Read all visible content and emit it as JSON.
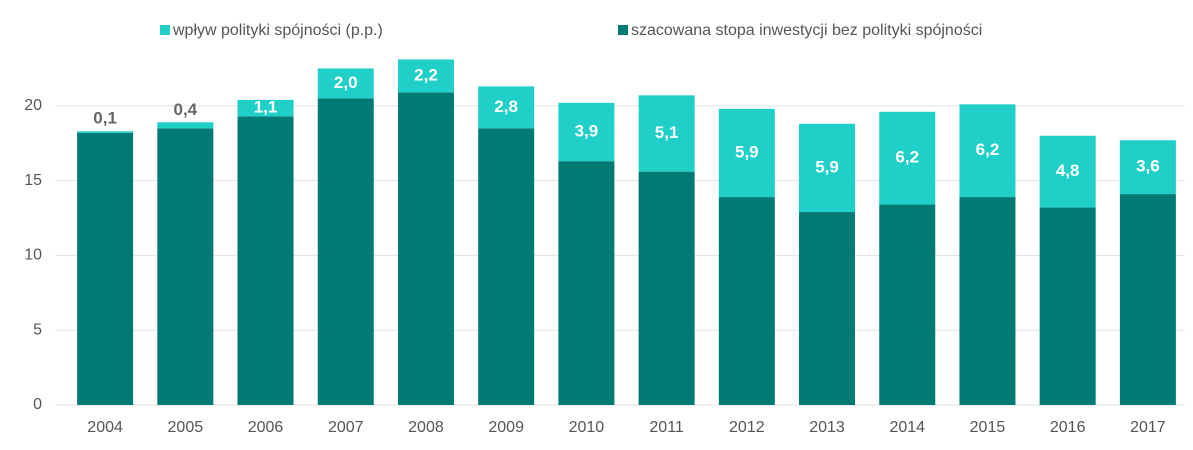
{
  "chart_data": {
    "type": "stacked_bar",
    "categories": [
      "2004",
      "2005",
      "2006",
      "2007",
      "2008",
      "2009",
      "2010",
      "2011",
      "2012",
      "2013",
      "2014",
      "2015",
      "2016",
      "2017"
    ],
    "series": [
      {
        "name": "szacowana stopa inwestycji bez polityki spójności",
        "color": "#007a73",
        "values": [
          18.2,
          18.5,
          19.3,
          20.5,
          20.9,
          18.5,
          16.3,
          15.6,
          13.9,
          12.9,
          13.4,
          13.9,
          13.2,
          14.1
        ]
      },
      {
        "name": "wpływ polityki spójności (p.p.)",
        "color": "#1fcfc8",
        "values": [
          0.1,
          0.4,
          1.1,
          2.0,
          2.2,
          2.8,
          3.9,
          5.1,
          5.9,
          5.9,
          6.2,
          6.2,
          4.8,
          3.6
        ],
        "value_labels": [
          "0,1",
          "0,4",
          "1,1",
          "2,0",
          "2,2",
          "2,8",
          "3,9",
          "5,1",
          "5,9",
          "5,9",
          "6,2",
          "6,2",
          "4,8",
          "3,6"
        ]
      }
    ],
    "ylim": [
      0,
      24
    ],
    "yticks": [
      0,
      5,
      10,
      15,
      20
    ],
    "grid": true
  }
}
